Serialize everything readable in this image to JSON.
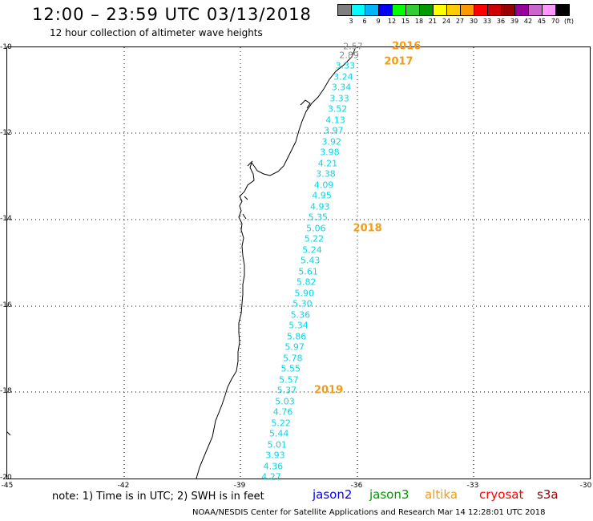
{
  "header": {
    "title": "12:00 – 23:59 UTC 03/13/2018",
    "subtitle": "12 hour collection of altimeter wave heights"
  },
  "colorbar": {
    "colors": [
      "#7f7f7f",
      "#00ffff",
      "#00b4ff",
      "#0000ff",
      "#00ff00",
      "#33cc33",
      "#009900",
      "#ffff00",
      "#ffcc00",
      "#ff9900",
      "#ff0000",
      "#cc0000",
      "#990000",
      "#990099",
      "#cc66cc",
      "#ff99ff",
      "#000000"
    ],
    "labels": [
      "3",
      "6",
      "9",
      "12",
      "15",
      "18",
      "21",
      "24",
      "27",
      "30",
      "33",
      "36",
      "39",
      "42",
      "45",
      "70",
      "(ft)"
    ]
  },
  "axes": {
    "lat_ticks": [
      "-10",
      "-12",
      "-14",
      "-16",
      "-18",
      "-20"
    ],
    "lon_ticks": [
      "-45",
      "-42",
      "-39",
      "-36",
      "-33",
      "-30"
    ]
  },
  "track_points": [
    {
      "lon": -36.1,
      "lat": -10.0,
      "value": "2.57",
      "tone": "gray"
    },
    {
      "lon": -36.2,
      "lat": -10.2,
      "value": "2.89",
      "tone": "gray"
    },
    {
      "lon": -36.3,
      "lat": -10.45,
      "value": "3.33",
      "tone": "cyan"
    },
    {
      "lon": -36.35,
      "lat": -10.7,
      "value": "3.24",
      "tone": "cyan"
    },
    {
      "lon": -36.4,
      "lat": -10.95,
      "value": "3.34",
      "tone": "cyan"
    },
    {
      "lon": -36.45,
      "lat": -11.2,
      "value": "3.33",
      "tone": "cyan"
    },
    {
      "lon": -36.5,
      "lat": -11.45,
      "value": "3.52",
      "tone": "cyan"
    },
    {
      "lon": -36.55,
      "lat": -11.7,
      "value": "4.13",
      "tone": "cyan"
    },
    {
      "lon": -36.6,
      "lat": -11.95,
      "value": "3.97",
      "tone": "cyan"
    },
    {
      "lon": -36.65,
      "lat": -12.2,
      "value": "3.92",
      "tone": "cyan"
    },
    {
      "lon": -36.7,
      "lat": -12.45,
      "value": "3.98",
      "tone": "cyan"
    },
    {
      "lon": -36.75,
      "lat": -12.7,
      "value": "4.21",
      "tone": "cyan"
    },
    {
      "lon": -36.8,
      "lat": -12.95,
      "value": "3.38",
      "tone": "cyan"
    },
    {
      "lon": -36.85,
      "lat": -13.2,
      "value": "4.09",
      "tone": "cyan"
    },
    {
      "lon": -36.9,
      "lat": -13.45,
      "value": "4.95",
      "tone": "cyan"
    },
    {
      "lon": -36.95,
      "lat": -13.7,
      "value": "4.93",
      "tone": "cyan"
    },
    {
      "lon": -37.0,
      "lat": -13.95,
      "value": "5.35",
      "tone": "cyan"
    },
    {
      "lon": -37.05,
      "lat": -14.2,
      "value": "5.06",
      "tone": "cyan"
    },
    {
      "lon": -37.1,
      "lat": -14.45,
      "value": "5.22",
      "tone": "cyan"
    },
    {
      "lon": -37.15,
      "lat": -14.7,
      "value": "5.24",
      "tone": "cyan"
    },
    {
      "lon": -37.2,
      "lat": -14.95,
      "value": "5.43",
      "tone": "cyan"
    },
    {
      "lon": -37.25,
      "lat": -15.2,
      "value": "5.61",
      "tone": "cyan"
    },
    {
      "lon": -37.3,
      "lat": -15.45,
      "value": "5.82",
      "tone": "cyan"
    },
    {
      "lon": -37.35,
      "lat": -15.7,
      "value": "5.90",
      "tone": "cyan"
    },
    {
      "lon": -37.4,
      "lat": -15.95,
      "value": "5.30",
      "tone": "cyan"
    },
    {
      "lon": -37.45,
      "lat": -16.2,
      "value": "5.36",
      "tone": "cyan"
    },
    {
      "lon": -37.5,
      "lat": -16.45,
      "value": "5.34",
      "tone": "cyan"
    },
    {
      "lon": -37.55,
      "lat": -16.7,
      "value": "5.86",
      "tone": "cyan"
    },
    {
      "lon": -37.6,
      "lat": -16.95,
      "value": "5.97",
      "tone": "cyan"
    },
    {
      "lon": -37.65,
      "lat": -17.2,
      "value": "5.78",
      "tone": "cyan"
    },
    {
      "lon": -37.7,
      "lat": -17.45,
      "value": "5.55",
      "tone": "cyan"
    },
    {
      "lon": -37.75,
      "lat": -17.7,
      "value": "5.57",
      "tone": "cyan"
    },
    {
      "lon": -37.8,
      "lat": -17.95,
      "value": "5.37",
      "tone": "cyan"
    },
    {
      "lon": -37.85,
      "lat": -18.2,
      "value": "5.03",
      "tone": "cyan"
    },
    {
      "lon": -37.9,
      "lat": -18.45,
      "value": "4.76",
      "tone": "cyan"
    },
    {
      "lon": -37.95,
      "lat": -18.7,
      "value": "5.22",
      "tone": "cyan"
    },
    {
      "lon": -38.0,
      "lat": -18.95,
      "value": "5.44",
      "tone": "cyan"
    },
    {
      "lon": -38.05,
      "lat": -19.2,
      "value": "5.01",
      "tone": "cyan"
    },
    {
      "lon": -38.1,
      "lat": -19.45,
      "value": "3.93",
      "tone": "cyan"
    },
    {
      "lon": -38.15,
      "lat": -19.7,
      "value": "4.36",
      "tone": "cyan"
    },
    {
      "lon": -38.2,
      "lat": -19.95,
      "value": "4.27",
      "tone": "cyan"
    }
  ],
  "year_labels": [
    {
      "lon": -35.1,
      "lat": -10.0,
      "text": "2016"
    },
    {
      "lon": -35.3,
      "lat": -10.35,
      "text": "2017"
    },
    {
      "lon": -36.1,
      "lat": -14.2,
      "text": "2018"
    },
    {
      "lon": -37.1,
      "lat": -17.95,
      "text": "2019"
    }
  ],
  "footer": {
    "note": "note:  1) Time is in UTC;  2) SWH is in feet",
    "satellites": [
      {
        "name": "jason2",
        "color": "#0000ff"
      },
      {
        "name": "jason3",
        "color": "#009900"
      },
      {
        "name": "altika",
        "color": "#ff9900"
      },
      {
        "name": "cryosat",
        "color": "#ff0000"
      },
      {
        "name": "s3a",
        "color": "#990000"
      }
    ],
    "credit": "NOAA/NESDIS Center for Satellite Applications and Research    Mar 14 12:28:01 UTC 2018"
  }
}
